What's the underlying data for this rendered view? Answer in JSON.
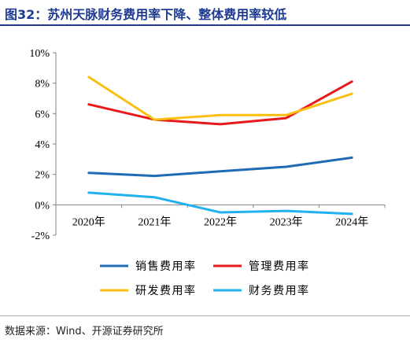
{
  "figure": {
    "title": "图32：苏州天脉财务费用率下降、整体费用率较低",
    "source": "数据来源：Wind、开源证券研究所"
  },
  "chart_data": {
    "type": "line",
    "title": "",
    "xlabel": "",
    "ylabel": "",
    "categories": [
      "2020年",
      "2021年",
      "2022年",
      "2023年",
      "2024年"
    ],
    "ylim": [
      -2,
      10
    ],
    "yticks": [
      -2,
      0,
      2,
      4,
      6,
      8,
      10
    ],
    "ytick_labels": [
      "-2%",
      "0%",
      "2%",
      "4%",
      "6%",
      "8%",
      "10%"
    ],
    "grid": false,
    "legend_position": "bottom",
    "series": [
      {
        "name": "销售费用率",
        "color": "#1f6cb4",
        "values": [
          2.1,
          1.9,
          2.2,
          2.5,
          3.1
        ]
      },
      {
        "name": "管理费用率",
        "color": "#e8191b",
        "values": [
          6.6,
          5.6,
          5.3,
          5.7,
          8.1
        ]
      },
      {
        "name": "研发费用率",
        "color": "#fbbf12",
        "values": [
          8.4,
          5.6,
          5.9,
          5.9,
          7.3
        ]
      },
      {
        "name": "财务费用率",
        "color": "#20b2ee",
        "values": [
          0.8,
          0.5,
          -0.5,
          -0.4,
          -0.6
        ]
      }
    ]
  }
}
